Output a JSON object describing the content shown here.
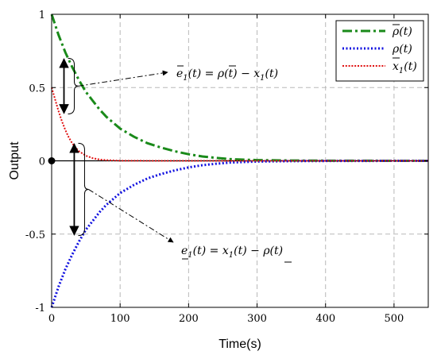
{
  "chart_data": {
    "type": "line",
    "xlabel": "Time(s)",
    "ylabel": "Output",
    "xlim": [
      0,
      550
    ],
    "ylim": [
      -1,
      1
    ],
    "x_ticks": [
      0,
      100,
      200,
      300,
      400,
      500
    ],
    "y_ticks": [
      -1,
      -0.5,
      0,
      0.5,
      1
    ],
    "x_tick_labels": [
      "0",
      "100",
      "200",
      "300",
      "400",
      "500"
    ],
    "y_tick_labels": [
      "-1",
      "-0.5",
      "0",
      "0.5",
      "1"
    ],
    "grid": true,
    "legend_position": "top-right",
    "series": [
      {
        "name": "ρ̄(t)",
        "style": "dash-dot",
        "color": "#1a8a1a",
        "x": [
          0,
          10,
          20,
          30,
          40,
          50,
          60,
          70,
          80,
          90,
          100,
          120,
          140,
          160,
          180,
          200,
          220,
          240,
          260,
          280,
          300,
          350,
          400,
          450,
          500,
          550
        ],
        "y": [
          1,
          0.86,
          0.74,
          0.64,
          0.55,
          0.47,
          0.41,
          0.35,
          0.3,
          0.26,
          0.22,
          0.165,
          0.12,
          0.09,
          0.065,
          0.045,
          0.03,
          0.02,
          0.012,
          0.008,
          0.005,
          0.002,
          0.001,
          0.0005,
          0.0002,
          0.0001
        ]
      },
      {
        "name": "ρ(t)",
        "style": "dotted",
        "color": "#1010e0",
        "x": [
          0,
          10,
          20,
          30,
          40,
          50,
          60,
          70,
          80,
          90,
          100,
          120,
          140,
          160,
          180,
          200,
          220,
          240,
          260,
          280,
          300,
          350,
          400,
          450,
          500,
          550
        ],
        "y": [
          -1,
          -0.86,
          -0.74,
          -0.64,
          -0.55,
          -0.47,
          -0.41,
          -0.35,
          -0.3,
          -0.26,
          -0.22,
          -0.165,
          -0.12,
          -0.09,
          -0.065,
          -0.045,
          -0.03,
          -0.02,
          -0.012,
          -0.008,
          -0.005,
          -0.002,
          -0.001,
          -0.0005,
          -0.0002,
          -0.0001
        ]
      },
      {
        "name": "x1(t)",
        "style": "dotted",
        "color": "#e01010",
        "x": [
          0,
          5,
          10,
          15,
          20,
          25,
          30,
          35,
          40,
          50,
          60,
          70,
          80,
          100,
          150,
          200,
          300,
          400,
          550
        ],
        "y": [
          0.5,
          0.42,
          0.34,
          0.27,
          0.21,
          0.16,
          0.12,
          0.09,
          0.065,
          0.035,
          0.018,
          0.009,
          0.005,
          0.001,
          0,
          0,
          0,
          0,
          0
        ]
      }
    ],
    "legend_entries": [
      {
        "main": "ρ",
        "bar": "over",
        "suffix": "(t)"
      },
      {
        "main": "ρ",
        "bar": "under",
        "suffix": "(t)"
      },
      {
        "main": "x",
        "sub": "1",
        "suffix": "(t)"
      }
    ],
    "annotations": [
      {
        "text_main": "e",
        "bar": "over",
        "text_rest": "(t) = ρ(t) − x",
        "eq_part1": "(t) = ",
        "eq_rho": "ρ",
        "eq_part2": "(t) − x",
        "eq_part3": "(t)"
      },
      {
        "text_main": "e",
        "bar": "under",
        "eq_part1": "(t) = x",
        "eq_part2": "(t) − ",
        "eq_rho": "ρ",
        "eq_part3": "(t)"
      }
    ],
    "annotation_points": [
      {
        "x": 18,
        "y_top": 0.7,
        "y_bottom": 0.32
      },
      {
        "x": 33,
        "y_top": 0.12,
        "y_bottom": -0.51
      }
    ]
  }
}
